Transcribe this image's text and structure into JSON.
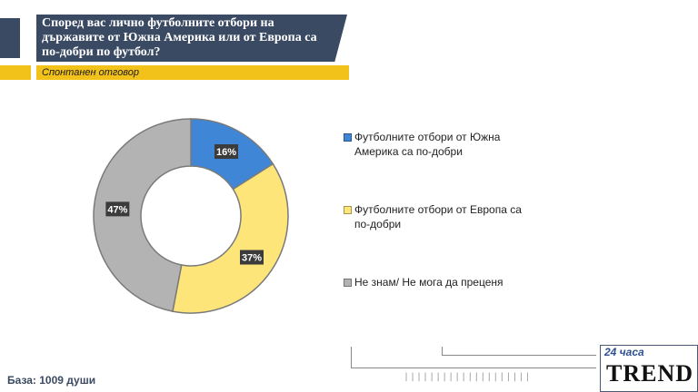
{
  "header": {
    "title": "Според вас лично футболните отбори на държавите от Южна Америка или от Европа са по-добри по футбол?",
    "subtitle": "Спонтанен отговор"
  },
  "footer": {
    "base": "База: 1009 души",
    "logo_top": "24 часа",
    "logo_main": "TREND"
  },
  "chart_data": {
    "type": "pie",
    "donut": true,
    "labels": [
      "Футболните отбори от Южна Америка са по-добри",
      "Футболните отбори от Европа са по-добри",
      "Не знам/ Не мога да преценя"
    ],
    "values": [
      16,
      37,
      47
    ],
    "value_labels": [
      "16%",
      "37%",
      "47%"
    ],
    "colors": [
      "#3f86d6",
      "#fde57a",
      "#b3b3b3"
    ],
    "legend_position": "right"
  },
  "legend": [
    {
      "label": "Футболните отбори от Южна Америка са по-добри",
      "color": "#3f86d6"
    },
    {
      "label": "Футболните отбори от Европа са по-добри",
      "color": "#fde57a"
    },
    {
      "label": "Не знам/ Не мога да преценя",
      "color": "#b3b3b3"
    }
  ]
}
